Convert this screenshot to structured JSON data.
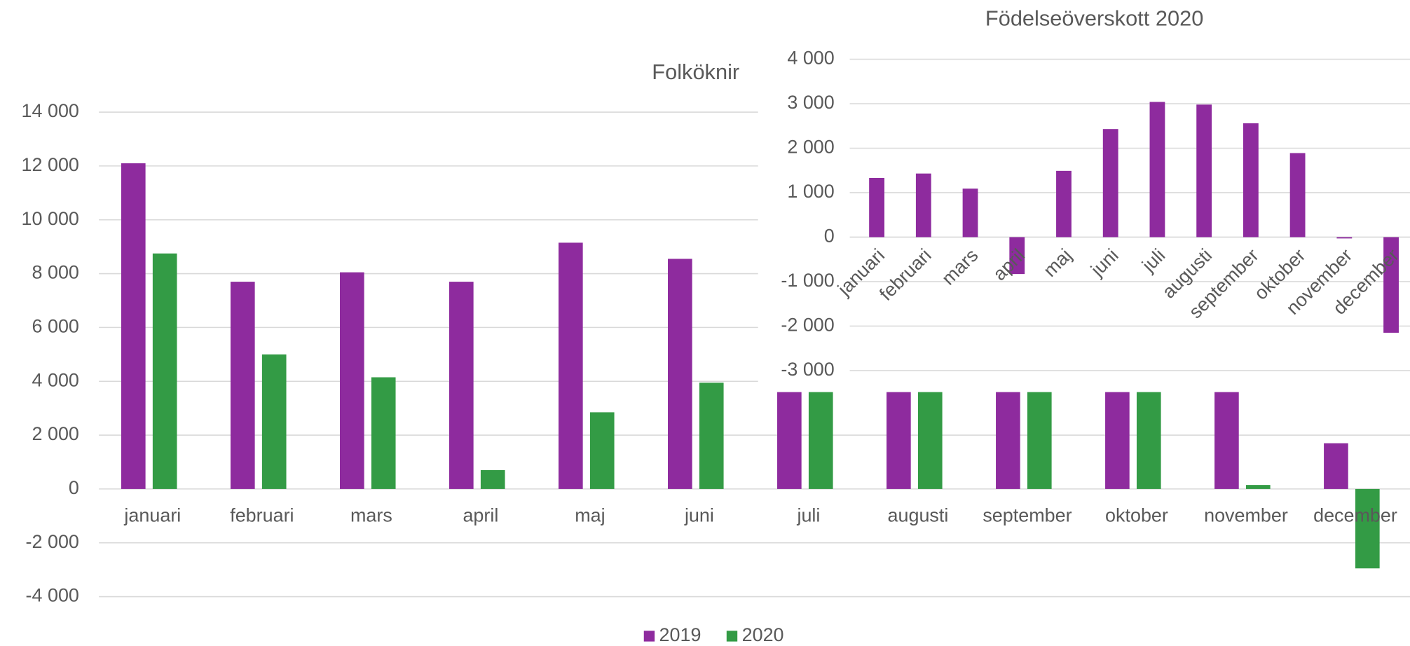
{
  "chart_data": [
    {
      "type": "bar",
      "title": "Folköknir",
      "categories": [
        "januari",
        "februari",
        "mars",
        "april",
        "maj",
        "juni",
        "juli",
        "augusti",
        "september",
        "oktober",
        "november",
        "december"
      ],
      "series": [
        {
          "name": "2019",
          "color": "#8e2b9e",
          "values": [
            12100,
            7700,
            8050,
            7700,
            9150,
            8550,
            9000,
            9300,
            9000,
            8600,
            8000,
            1700
          ]
        },
        {
          "name": "2020",
          "color": "#339b45",
          "values": [
            8750,
            5000,
            4150,
            700,
            2850,
            3950,
            5500,
            4200,
            4000,
            4300,
            150,
            -2950
          ]
        }
      ],
      "ylim": [
        -4000,
        14000
      ],
      "yticks": [
        {
          "value": -4000,
          "label": "-4 000"
        },
        {
          "value": -2000,
          "label": "-2 000"
        },
        0,
        {
          "value": 2000,
          "label": "2 000"
        },
        {
          "value": 4000,
          "label": "4 000"
        },
        {
          "value": 6000,
          "label": "6 000"
        },
        {
          "value": 8000,
          "label": "8 000"
        },
        {
          "value": 10000,
          "label": "10 000"
        },
        {
          "value": 12000,
          "label": "12 000"
        },
        {
          "value": 14000,
          "label": "14 000"
        }
      ],
      "grid": true,
      "legend": "bottom"
    },
    {
      "type": "bar",
      "title": "Födelseöverskott 2020",
      "categories": [
        "januari",
        "februari",
        "mars",
        "april",
        "maj",
        "juni",
        "juli",
        "augusti",
        "september",
        "oktober",
        "november",
        "december"
      ],
      "values": [
        1330,
        1430,
        1090,
        -830,
        1490,
        2430,
        3040,
        2980,
        2560,
        1890,
        -30,
        -2150
      ],
      "color": "#8e2b9e",
      "ylim": [
        -3000,
        4000
      ],
      "yticks": [
        {
          "value": -3000,
          "label": "-3 000"
        },
        {
          "value": -2000,
          "label": "-2 000"
        },
        {
          "value": -1000,
          "label": "-1 000"
        },
        0,
        {
          "value": 1000,
          "label": "1 000"
        },
        {
          "value": 2000,
          "label": "2 000"
        },
        {
          "value": 3000,
          "label": "3 000"
        },
        {
          "value": 4000,
          "label": "4 000"
        }
      ],
      "grid": true,
      "rotate_labels": true
    }
  ]
}
